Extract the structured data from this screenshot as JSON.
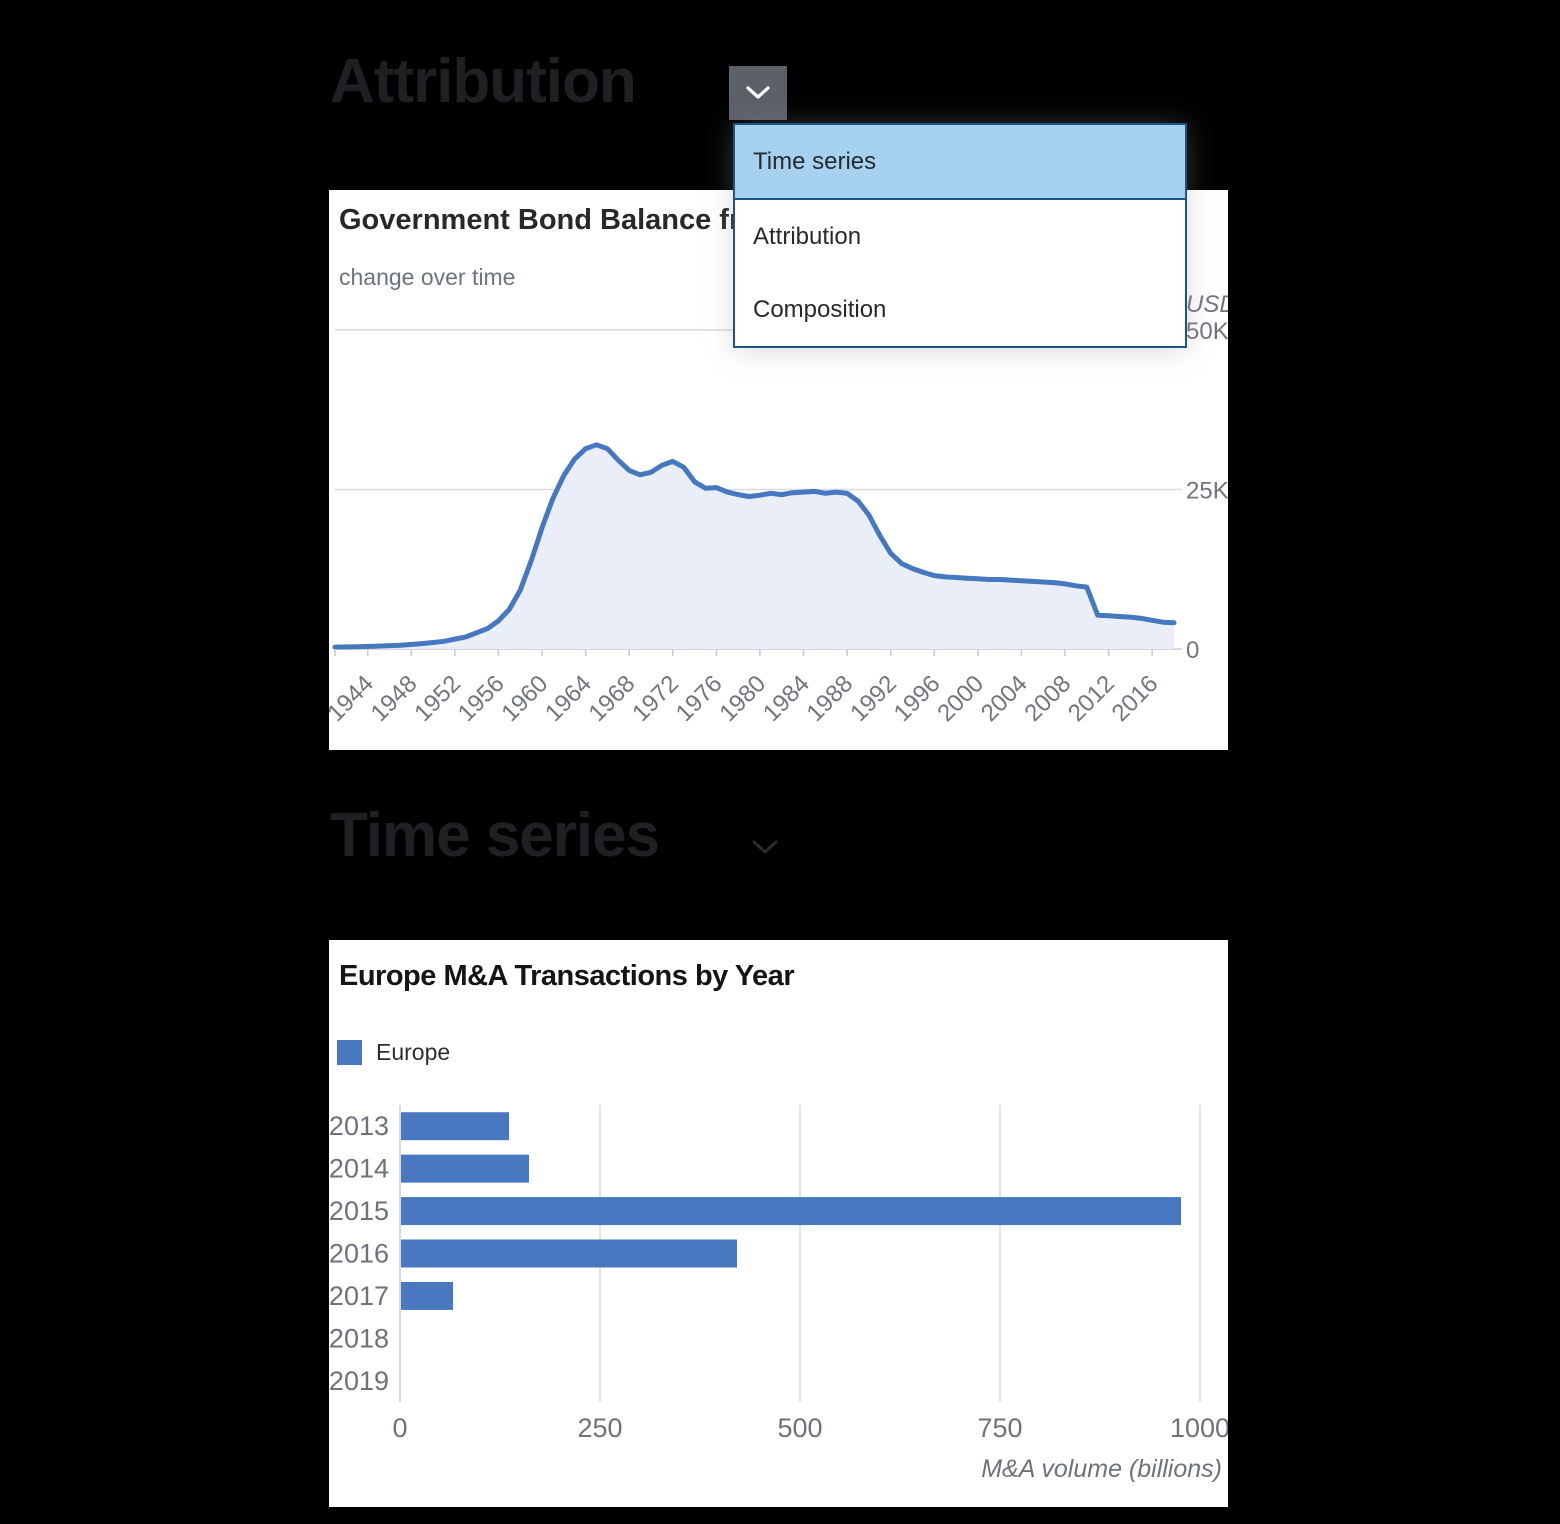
{
  "attribution_section": {
    "heading": "Attribution"
  },
  "timeseries_section": {
    "heading": "Time series"
  },
  "dropdown": {
    "items": [
      {
        "label": "Time series",
        "selected": true
      },
      {
        "label": "Attribution",
        "selected": false
      },
      {
        "label": "Composition",
        "selected": false
      }
    ],
    "selected_bg": "#a6d2ef",
    "border_color": "#1c5582",
    "toggle_bg": "#5c6167"
  },
  "bond_card": {
    "title": "Government Bond Balance fr",
    "subtitle": "change over time"
  },
  "ma_card": {
    "title": "Europe M&A Transactions by Year",
    "legend_label": "Europe"
  },
  "colors": {
    "line": "#4678c0",
    "area_fill": "#e9eef9",
    "bar": "#4878c0",
    "grid": "#d9dbdf",
    "axis": "#c8ccd2",
    "tick_text": "#71767e"
  },
  "chart_data": [
    {
      "type": "area",
      "title": "Government Bond Balance fr",
      "subtitle": "change over time",
      "unit_label": "USD",
      "ylim": [
        0,
        50000
      ],
      "yticks": [
        {
          "value": 0,
          "label": "0"
        },
        {
          "value": 25000,
          "label": "25K"
        },
        {
          "value": 50000,
          "label": "50K"
        }
      ],
      "xlim": [
        1941,
        2018
      ],
      "xtick_years": [
        1944,
        1948,
        1952,
        1956,
        1960,
        1964,
        1968,
        1972,
        1976,
        1980,
        1984,
        1988,
        1992,
        1996,
        2000,
        2004,
        2008,
        2012,
        2016
      ],
      "grid": true,
      "legend_position": "none",
      "series": [
        {
          "name": "Government Bond Balance",
          "points": [
            [
              1941,
              300
            ],
            [
              1943,
              350
            ],
            [
              1945,
              450
            ],
            [
              1947,
              600
            ],
            [
              1949,
              850
            ],
            [
              1951,
              1200
            ],
            [
              1953,
              1900
            ],
            [
              1955,
              3200
            ],
            [
              1956,
              4400
            ],
            [
              1957,
              6200
            ],
            [
              1958,
              9200
            ],
            [
              1959,
              13800
            ],
            [
              1960,
              19000
            ],
            [
              1961,
              23600
            ],
            [
              1962,
              27200
            ],
            [
              1963,
              29800
            ],
            [
              1964,
              31400
            ],
            [
              1965,
              32000
            ],
            [
              1966,
              31400
            ],
            [
              1967,
              29600
            ],
            [
              1968,
              28000
            ],
            [
              1969,
              27300
            ],
            [
              1970,
              27700
            ],
            [
              1971,
              28800
            ],
            [
              1972,
              29400
            ],
            [
              1973,
              28500
            ],
            [
              1974,
              26200
            ],
            [
              1975,
              25200
            ],
            [
              1976,
              25300
            ],
            [
              1977,
              24600
            ],
            [
              1978,
              24200
            ],
            [
              1979,
              23900
            ],
            [
              1980,
              24100
            ],
            [
              1981,
              24400
            ],
            [
              1982,
              24200
            ],
            [
              1983,
              24500
            ],
            [
              1984,
              24600
            ],
            [
              1985,
              24700
            ],
            [
              1986,
              24400
            ],
            [
              1987,
              24600
            ],
            [
              1988,
              24400
            ],
            [
              1989,
              23200
            ],
            [
              1990,
              21000
            ],
            [
              1991,
              17800
            ],
            [
              1992,
              15000
            ],
            [
              1993,
              13400
            ],
            [
              1994,
              12600
            ],
            [
              1995,
              12000
            ],
            [
              1996,
              11500
            ],
            [
              1997,
              11300
            ],
            [
              1998,
              11200
            ],
            [
              1999,
              11100
            ],
            [
              2000,
              11000
            ],
            [
              2001,
              10900
            ],
            [
              2002,
              10900
            ],
            [
              2003,
              10800
            ],
            [
              2004,
              10700
            ],
            [
              2005,
              10600
            ],
            [
              2006,
              10500
            ],
            [
              2007,
              10400
            ],
            [
              2008,
              10200
            ],
            [
              2009,
              9900
            ],
            [
              2010,
              9700
            ],
            [
              2011,
              5300
            ],
            [
              2012,
              5200
            ],
            [
              2013,
              5100
            ],
            [
              2014,
              5000
            ],
            [
              2015,
              4800
            ],
            [
              2016,
              4500
            ],
            [
              2017,
              4200
            ],
            [
              2018,
              4100
            ]
          ]
        }
      ]
    },
    {
      "type": "bar",
      "orientation": "horizontal",
      "title": "Europe M&A Transactions by Year",
      "legend": [
        "Europe"
      ],
      "categories": [
        "2013",
        "2014",
        "2015",
        "2016",
        "2017",
        "2018",
        "2019"
      ],
      "values": [
        135,
        160,
        975,
        420,
        65,
        0,
        0
      ],
      "xlim": [
        0,
        1000
      ],
      "xticks": [
        0,
        250,
        500,
        750,
        1000
      ],
      "xlabel": "M&A volume (billions)",
      "grid": true,
      "legend_position": "top-left",
      "bar_color": "#4878c0"
    }
  ]
}
